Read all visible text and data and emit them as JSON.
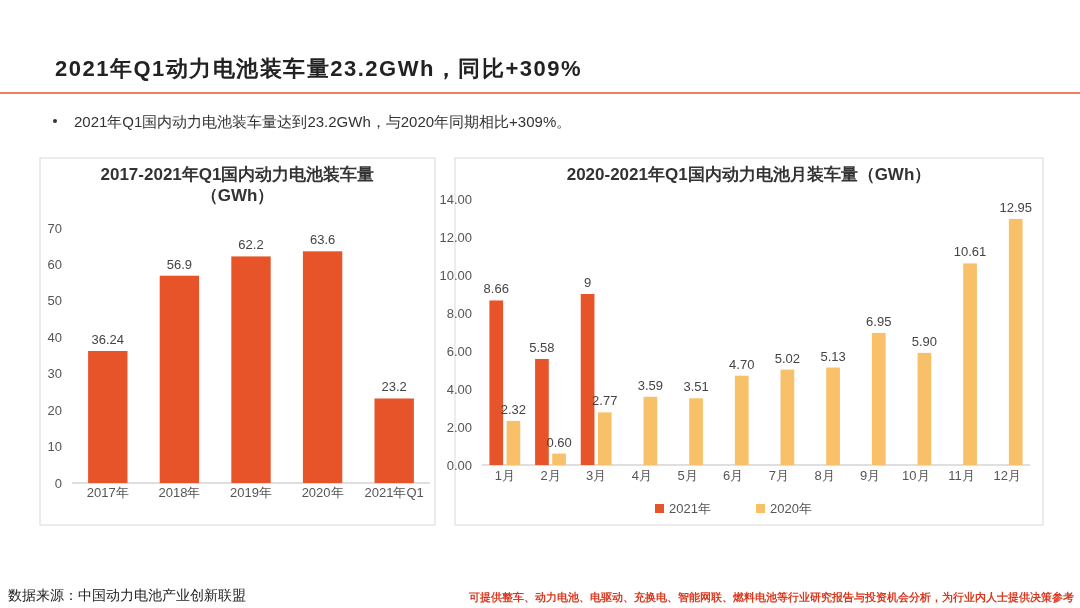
{
  "chart_data": [
    {
      "type": "bar",
      "title": "2017-2021年Q1国内动力电池装车量（GWh）",
      "categories": [
        "2017年",
        "2018年",
        "2019年",
        "2020年",
        "2021年Q1"
      ],
      "values": [
        36.24,
        56.9,
        62.2,
        63.6,
        23.2
      ],
      "color": "#e8542a",
      "ylim": [
        0,
        70
      ],
      "yticks": [
        0,
        10,
        20,
        30,
        40,
        50,
        60,
        70
      ],
      "data_labels": true,
      "annotations": [
        "2021年Q1动力电池装车量23.2GWh，同比+309%",
        "2021年Q1国内动力电池装车量达到23.2GWh，与2020年同期相比+309%。",
        "数据来源：中国动力电池产业创新联盟",
        "可提供整车、动力电池、电驱动、充换电、智能网联、燃料电池等行业研究报告与投资机会分析，为行业内人士提供决策参考"
      ]
    },
    {
      "type": "bar",
      "title": "2020-2021年Q1国内动力电池月装车量（GWh）",
      "categories": [
        "1月",
        "2月",
        "3月",
        "4月",
        "5月",
        "6月",
        "7月",
        "8月",
        "9月",
        "10月",
        "11月",
        "12月"
      ],
      "series": [
        {
          "name": "2021年",
          "color": "#e8542a",
          "values": [
            8.66,
            5.58,
            9,
            null,
            null,
            null,
            null,
            null,
            null,
            null,
            null,
            null
          ],
          "value_labels": [
            "8.66",
            "5.58",
            "9",
            null,
            null,
            null,
            null,
            null,
            null,
            null,
            null,
            null
          ]
        },
        {
          "name": "2020年",
          "color": "#f8c068",
          "values": [
            2.32,
            0.6,
            2.77,
            3.59,
            3.51,
            4.7,
            5.02,
            5.13,
            6.95,
            5.9,
            10.61,
            12.95
          ],
          "value_labels": [
            "2.32",
            "0.60",
            "2.77",
            "3.59",
            "3.51",
            "4.70",
            "5.02",
            "5.13",
            "6.95",
            "5.90",
            "10.61",
            "12.95"
          ]
        }
      ],
      "ylim": [
        0,
        14
      ],
      "yticks": [
        {
          "value": 0,
          "label": "0.00"
        },
        {
          "value": 2,
          "label": "2.00"
        },
        {
          "value": 4,
          "label": "4.00"
        },
        {
          "value": 6,
          "label": "6.00"
        },
        {
          "value": 8,
          "label": "8.00"
        },
        {
          "value": 10,
          "label": "10.00"
        },
        {
          "value": 12,
          "label": "12.00"
        },
        {
          "value": 14,
          "label": "14.00"
        }
      ],
      "legend": "bottom"
    }
  ]
}
